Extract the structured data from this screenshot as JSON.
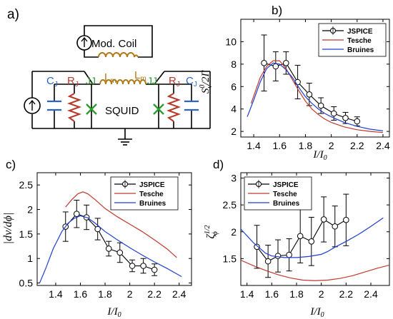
{
  "figure": {
    "panels": [
      {
        "label": "a)",
        "components": {
          "mod_coil": "Mod. Coil",
          "squid": "SQUID",
          "cap_left": "C",
          "cap_left_sub": "J",
          "res_left": "R",
          "res_left_sub": "J",
          "jj_left": "JJ",
          "lm_left": "L",
          "lm_left_sub": "m",
          "lm_right": "L",
          "lm_right_sub": "m",
          "jj_right": "JJ",
          "res_right": "R",
          "res_right_sub": "J",
          "cap_right": "C",
          "cap_right_sub": "J"
        },
        "colors": {
          "wire": "#000000",
          "inductor": "#b07a1a",
          "capacitor": "#2a63c9",
          "resistor": "#b53a2a",
          "junction": "#2e9a2e"
        }
      }
    ],
    "legend_labels": [
      "JSPICE",
      "Tesche",
      "Bruines"
    ],
    "series_colors": {
      "JSPICE": "#000000",
      "Tesche": "#c0392b",
      "Bruines": "#1f3fd1"
    }
  },
  "chart_data": [
    {
      "panel": "b)",
      "type": "line",
      "ylabel": "S_v^0/2Γ",
      "xlabel": "I/I_0",
      "xlim": [
        1.3,
        2.45
      ],
      "ylim": [
        1.5,
        12
      ],
      "xticks": [
        1.4,
        1.6,
        1.8,
        2,
        2.2,
        2.4
      ],
      "yticks": [
        2,
        4,
        6,
        8,
        10
      ],
      "legend": "top-right",
      "series": [
        {
          "name": "JSPICE",
          "x": [
            1.48,
            1.57,
            1.65,
            1.74,
            1.83,
            1.92,
            2.02,
            2.11,
            2.2
          ],
          "y": [
            8.1,
            7.8,
            8.1,
            6.4,
            5.3,
            4.3,
            3.6,
            3.2,
            2.9
          ],
          "err": [
            2.5,
            1.3,
            1.0,
            1.5,
            1.0,
            0.7,
            0.6,
            0.5,
            0.4
          ]
        },
        {
          "name": "Tesche",
          "x": [
            1.38,
            1.45,
            1.5,
            1.55,
            1.6,
            1.65,
            1.7,
            1.75,
            1.8,
            1.85,
            1.9,
            1.95,
            2.0,
            2.1,
            2.2,
            2.3,
            2.4
          ],
          "y": [
            4.5,
            6.8,
            7.8,
            8.3,
            8.3,
            7.6,
            6.6,
            5.6,
            4.7,
            4.0,
            3.5,
            3.1,
            2.8,
            2.4,
            2.15,
            2.0,
            1.9
          ]
        },
        {
          "name": "Bruines",
          "x": [
            1.35,
            1.4,
            1.45,
            1.5,
            1.55,
            1.6,
            1.65,
            1.7,
            1.75,
            1.8,
            1.85,
            1.9,
            1.95,
            2.0,
            2.1,
            2.2,
            2.3,
            2.4
          ],
          "y": [
            3.3,
            4.8,
            6.4,
            7.6,
            8.1,
            8.0,
            7.5,
            6.8,
            5.9,
            5.1,
            4.5,
            4.0,
            3.6,
            3.3,
            2.8,
            2.45,
            2.2,
            2.05
          ]
        }
      ]
    },
    {
      "panel": "c)",
      "type": "line",
      "ylabel": "|dv/dϕ|",
      "xlabel": "I/I_0",
      "xlim": [
        1.25,
        2.5
      ],
      "ylim": [
        0.45,
        2.75
      ],
      "xticks": [
        1.4,
        1.6,
        1.8,
        2,
        2.2,
        2.4
      ],
      "yticks": [
        0.5,
        1,
        1.5,
        2,
        2.5
      ],
      "legend": "top-right",
      "series": [
        {
          "name": "JSPICE",
          "x": [
            1.48,
            1.57,
            1.65,
            1.74,
            1.83,
            1.92,
            2.02,
            2.11,
            2.2
          ],
          "y": [
            1.65,
            1.91,
            1.84,
            1.6,
            1.2,
            1.12,
            0.85,
            0.85,
            0.77
          ],
          "err": [
            0.3,
            0.28,
            0.25,
            0.22,
            0.15,
            0.2,
            0.12,
            0.15,
            0.12
          ]
        },
        {
          "name": "Tesche",
          "x": [
            1.48,
            1.53,
            1.58,
            1.62,
            1.66,
            1.72,
            1.8,
            1.9,
            2.0,
            2.1,
            2.2,
            2.3,
            2.38
          ],
          "y": [
            2.05,
            2.2,
            2.32,
            2.36,
            2.32,
            2.2,
            2.02,
            1.85,
            1.7,
            1.55,
            1.38,
            1.2,
            1.02
          ]
        },
        {
          "name": "Bruines",
          "x": [
            1.27,
            1.32,
            1.38,
            1.45,
            1.5,
            1.55,
            1.6,
            1.66,
            1.72,
            1.8,
            1.9,
            2.0,
            2.1,
            2.2,
            2.3,
            2.42
          ],
          "y": [
            0.5,
            0.8,
            1.2,
            1.55,
            1.72,
            1.82,
            1.87,
            1.83,
            1.72,
            1.55,
            1.38,
            1.22,
            1.07,
            0.93,
            0.8,
            0.63
          ]
        }
      ]
    },
    {
      "panel": "d)",
      "type": "line",
      "ylabel": "ζ_ϕ^1/2",
      "xlabel": "I/I_0",
      "xlim": [
        1.35,
        2.55
      ],
      "ylim": [
        1.0,
        3.1
      ],
      "xticks": [
        1.4,
        1.6,
        1.8,
        2,
        2.2,
        2.4
      ],
      "yticks": [
        1.5,
        2,
        2.5,
        3
      ],
      "legend": "top-left",
      "series": [
        {
          "name": "JSPICE",
          "x": [
            1.48,
            1.57,
            1.65,
            1.74,
            1.83,
            1.92,
            2.02,
            2.11,
            2.2
          ],
          "y": [
            1.72,
            1.45,
            1.55,
            1.57,
            1.92,
            1.82,
            2.23,
            2.1,
            2.22
          ],
          "err": [
            0.4,
            0.3,
            0.3,
            0.3,
            0.5,
            0.45,
            0.42,
            0.38,
            0.48
          ]
        },
        {
          "name": "Tesche",
          "x": [
            1.35,
            1.45,
            1.55,
            1.65,
            1.75,
            1.85,
            1.95,
            2.05,
            2.15,
            2.25,
            2.35,
            2.45,
            2.55
          ],
          "y": [
            1.47,
            1.37,
            1.28,
            1.2,
            1.14,
            1.1,
            1.09,
            1.1,
            1.13,
            1.18,
            1.25,
            1.32,
            1.38
          ]
        },
        {
          "name": "Bruines",
          "x": [
            1.35,
            1.45,
            1.55,
            1.6,
            1.7,
            1.8,
            1.9,
            2.0,
            2.05,
            2.1,
            2.2,
            2.3,
            2.4,
            2.5
          ],
          "y": [
            2.05,
            1.8,
            1.6,
            1.55,
            1.52,
            1.52,
            1.54,
            1.58,
            1.63,
            1.7,
            1.82,
            1.95,
            2.1,
            2.26
          ]
        }
      ]
    }
  ]
}
